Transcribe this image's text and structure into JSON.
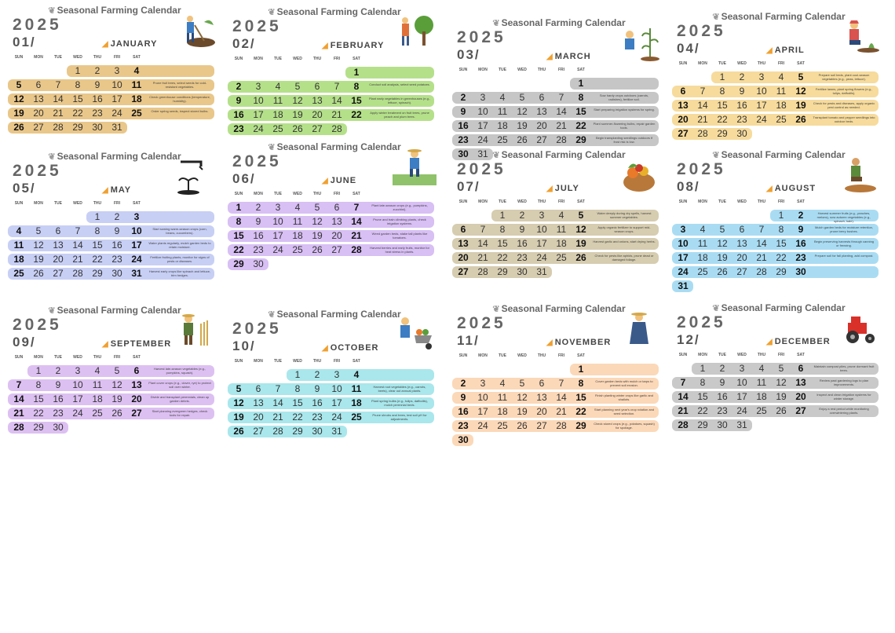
{
  "site_title": "Seasonal Farming Calendar",
  "year": "2025",
  "weekdays": [
    "SUN",
    "MON",
    "TUE",
    "WED",
    "THU",
    "FRI",
    "SAT"
  ],
  "colors": {
    "jan": "#e9c78a",
    "feb": "#b5e08a",
    "mar": "#c6c6c6",
    "apr": "#f6db9c",
    "may": "#c7cff5",
    "jun": "#d8bff4",
    "jul": "#d6ccb0",
    "aug": "#a9dcf3",
    "sep": "#ddc0f2",
    "oct": "#a9e7ec",
    "nov": "#fbd8b8",
    "dec": "#c9c9c9"
  },
  "months": [
    {
      "num": "01/",
      "name": "JANUARY",
      "first_weekday": 3,
      "days": 31,
      "art": "farmer-digging-icon",
      "color": "jan",
      "band_style": "full",
      "notes": [
        "",
        "Prune fruit trees, select seeds for cold-resistant vegetables.",
        "Check greenhouse conditions (temperature, humidity).",
        "Order spring seeds, inspect stored bulbs.",
        "Spread manure on fields, prepare pots for seedlings."
      ]
    },
    {
      "num": "02/",
      "name": "FEBRUARY",
      "first_weekday": 6,
      "days": 28,
      "art": "farmer-tree-icon",
      "color": "feb",
      "band_style": "full",
      "notes": [
        "",
        "Conduct soil analysis, select seed potatoes.",
        "Plant early vegetables in greenhouses (e.g., lettuce, spinach).",
        "Apply winter treatment on fruit trees, prune peach and plum trees.",
        "Check fences and field borders, dig holes for new trees."
      ]
    },
    {
      "num": "03/",
      "name": "MARCH",
      "first_weekday": 6,
      "days": 31,
      "art": "farmer-planting-icon",
      "color": "mar",
      "band_style": "full",
      "notes": [
        "",
        "Sow hardy crops outdoors (carrots, radishes), fertilize soil.",
        "Start preparing irrigation systems for spring.",
        "Plant summer-flowering bulbs, repair garden tools.",
        "Begin transplanting seedlings outdoors if frost risk is low."
      ]
    },
    {
      "num": "04/",
      "name": "APRIL",
      "first_weekday": 2,
      "days": 30,
      "art": "farmer-kneeling-icon",
      "color": "apr",
      "band_style": "full",
      "notes": [
        "Prepare soil beds, plant cool-season vegetables (e.g., peas, lettuce).",
        "Fertilize lawns, plant spring flowers (e.g., tulips, daffodils).",
        "Check for pests and diseases, apply organic pest control as needed.",
        "Transplant tomato and pepper seedlings into outdoor beds.",
        ""
      ]
    },
    {
      "num": "05/",
      "name": "MAY",
      "first_weekday": 4,
      "days": 31,
      "art": "watering-sprout-icon",
      "color": "may",
      "band_style": "full",
      "notes": [
        "",
        "Start sowing warm-season crops (corn, beans, cucumbers).",
        "Water plants regularly, mulch garden beds to retain moisture.",
        "Fertilize fruiting plants, monitor for signs of pests or diseases.",
        "Harvest early crops like spinach and lettuce, trim hedges."
      ]
    },
    {
      "num": "06/",
      "name": "JUNE",
      "first_weekday": 0,
      "days": 30,
      "art": "farmer-field-icon",
      "color": "jun",
      "band_style": "full",
      "notes": [
        "Plant late-season crops (e.g., pumpkins, zucchini).",
        "Prune and train climbing plants, check irrigation systems.",
        "Weed garden beds, stake tall plants like tomatoes.",
        "Harvest berries and early fruits, monitor for heat stress in plants.",
        ""
      ]
    },
    {
      "num": "07/",
      "name": "JULY",
      "first_weekday": 2,
      "days": 31,
      "art": "harvest-basket-icon",
      "color": "jul",
      "band_style": "full",
      "notes": [
        "Water deeply during dry spells, harvest summer vegetables.",
        "Apply organic fertilizer to support mid-season crops.",
        "Harvest garlic and onions, start drying herbs.",
        "Check for pests like aphids, prune dead or damaged foliage.",
        ""
      ]
    },
    {
      "num": "08/",
      "name": "AUGUST",
      "first_weekday": 5,
      "days": 31,
      "art": "farmer-sitting-icon",
      "color": "aug",
      "band_style": "full",
      "notes": [
        "Harvest summer fruits (e.g., peaches, melons), sow autumn vegetables (e.g., spinach, kale).",
        "Mulch garden beds for moisture retention, prune berry bushes.",
        "Begin preserving harvests through canning or freezing.",
        "Prepare soil for fall planting, add compost.",
        ""
      ]
    },
    {
      "num": "09/",
      "name": "SEPTEMBER",
      "first_weekday": 1,
      "days": 30,
      "art": "farmer-wheat-icon",
      "color": "sep",
      "band_style": "full",
      "notes": [
        "Harvest late-season vegetables (e.g., pumpkins, squash).",
        "Plant cover crops (e.g., clover, rye) to protect soil over winter.",
        "Divide and transplant perennials, clean up garden debris.",
        "Start planning evergreen hedges, check tools for repair.",
        ""
      ]
    },
    {
      "num": "10/",
      "name": "OCTOBER",
      "first_weekday": 3,
      "days": 31,
      "art": "farmer-wheelbarrow-icon",
      "color": "oct",
      "band_style": "full",
      "notes": [
        "",
        "Harvest root vegetables (e.g., carrots, beets), clear out annual plants.",
        "Plant spring bulbs (e.g., tulips, daffodils), mulch perennial beds.",
        "Prune shrubs and trees, test soil pH for adjustments.",
        "Store tools and equipment for winter, clean greenhouses."
      ]
    },
    {
      "num": "11/",
      "name": "NOVEMBER",
      "first_weekday": 6,
      "days": 30,
      "art": "farmer-woman-icon",
      "color": "nov",
      "band_style": "full",
      "notes": [
        "",
        "Cover garden beds with mulch or tarps to prevent soil erosion.",
        "Finish planting winter crops like garlic and shallots.",
        "Start planning next year's crop rotation and seed selection.",
        "Check stored crops (e.g., potatoes, squash) for spoilage."
      ]
    },
    {
      "num": "12/",
      "name": "DECEMBER",
      "first_weekday": 1,
      "days": 31,
      "art": "tractor-icon",
      "color": "dec",
      "band_style": "full",
      "notes": [
        "Maintain compost piles, prune dormant fruit trees.",
        "Review past gardening logs to plan improvements.",
        "Inspect and clean irrigation systems for winter storage.",
        "Enjoy a rest period while monitoring overwintering plants.",
        ""
      ]
    }
  ]
}
